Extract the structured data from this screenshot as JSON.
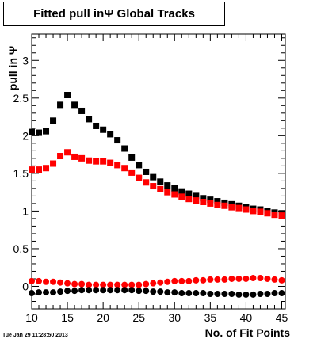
{
  "header": {
    "title": "Fitted pull inΨ   Global Tracks",
    "timestamp": "Tue Jan 29 11:28:50 2013"
  },
  "chart_data": {
    "type": "scatter",
    "title": "Fitted pull inΨ   Global Tracks",
    "xlabel": "No. of Fit Points",
    "ylabel": "pull in Ψ",
    "xlim": [
      10,
      45.5
    ],
    "ylim": [
      -0.3,
      3.35
    ],
    "x_ticks": [
      10,
      15,
      20,
      25,
      30,
      35,
      40,
      45
    ],
    "y_ticks": [
      0,
      0.5,
      1,
      1.5,
      2,
      2.5,
      3
    ],
    "x_tick_labels": [
      "10",
      "15",
      "20",
      "25",
      "30",
      "35",
      "40",
      "45"
    ],
    "y_tick_labels": [
      "0",
      "0.5",
      "1",
      "1.5",
      "2",
      "2.5",
      "3"
    ],
    "grid": false,
    "x": [
      10,
      11,
      12,
      13,
      14,
      15,
      16,
      17,
      18,
      19,
      20,
      21,
      22,
      23,
      24,
      25,
      26,
      27,
      28,
      29,
      30,
      31,
      32,
      33,
      34,
      35,
      36,
      37,
      38,
      39,
      40,
      41,
      42,
      43,
      44,
      45
    ],
    "series": [
      {
        "color": "#000000",
        "marker": "square",
        "values": [
          2.05,
          2.04,
          2.06,
          2.2,
          2.41,
          2.54,
          2.41,
          2.33,
          2.22,
          2.13,
          2.08,
          2.02,
          1.94,
          1.83,
          1.71,
          1.61,
          1.52,
          1.45,
          1.39,
          1.34,
          1.3,
          1.26,
          1.23,
          1.2,
          1.17,
          1.15,
          1.13,
          1.11,
          1.09,
          1.07,
          1.05,
          1.03,
          1.02,
          1.0,
          0.98,
          0.97
        ]
      },
      {
        "color": "#ff0000",
        "marker": "square",
        "values": [
          1.55,
          1.55,
          1.57,
          1.63,
          1.73,
          1.78,
          1.72,
          1.7,
          1.67,
          1.66,
          1.66,
          1.64,
          1.61,
          1.57,
          1.51,
          1.44,
          1.38,
          1.33,
          1.29,
          1.25,
          1.22,
          1.19,
          1.16,
          1.14,
          1.12,
          1.1,
          1.08,
          1.07,
          1.05,
          1.04,
          1.02,
          1.0,
          0.99,
          0.97,
          0.95,
          0.94
        ]
      },
      {
        "color": "#ff0000",
        "marker": "circle",
        "values": [
          0.07,
          0.07,
          0.06,
          0.06,
          0.05,
          0.04,
          0.03,
          0.03,
          0.02,
          0.02,
          0.02,
          0.02,
          0.02,
          0.02,
          0.02,
          0.02,
          0.03,
          0.04,
          0.05,
          0.06,
          0.07,
          0.07,
          0.07,
          0.08,
          0.08,
          0.09,
          0.09,
          0.09,
          0.1,
          0.1,
          0.1,
          0.11,
          0.11,
          0.1,
          0.09,
          0.08
        ]
      },
      {
        "color": "#000000",
        "marker": "circle",
        "values": [
          -0.09,
          -0.08,
          -0.08,
          -0.08,
          -0.07,
          -0.06,
          -0.06,
          -0.05,
          -0.05,
          -0.05,
          -0.05,
          -0.05,
          -0.05,
          -0.05,
          -0.05,
          -0.06,
          -0.06,
          -0.07,
          -0.07,
          -0.08,
          -0.08,
          -0.09,
          -0.09,
          -0.09,
          -0.09,
          -0.1,
          -0.1,
          -0.1,
          -0.1,
          -0.11,
          -0.11,
          -0.11,
          -0.1,
          -0.1,
          -0.09,
          -0.09
        ]
      }
    ]
  }
}
